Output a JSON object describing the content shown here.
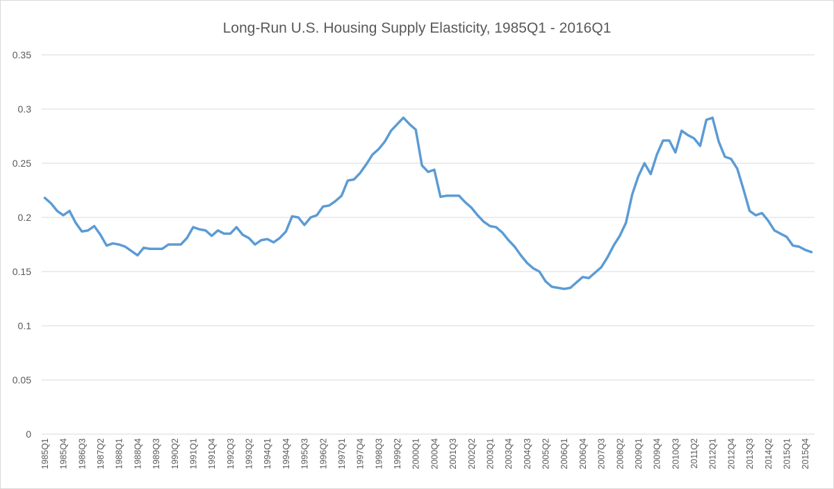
{
  "chart_data": {
    "type": "line",
    "title": "Long-Run U.S. Housing Supply Elasticity, 1985Q1 - 2016Q1",
    "xlabel": "",
    "ylabel": "",
    "ylim": [
      0,
      0.35
    ],
    "yticks": [
      "0",
      "0.05",
      "0.1",
      "0.15",
      "0.2",
      "0.25",
      "0.3",
      "0.35"
    ],
    "grid": true,
    "legend": "none",
    "series_color": "#5b9bd5",
    "xtick_labels": [
      "1985Q1",
      "1985Q4",
      "1986Q3",
      "1987Q2",
      "1988Q1",
      "1988Q4",
      "1989Q3",
      "1990Q2",
      "1991Q1",
      "1991Q4",
      "1992Q3",
      "1993Q2",
      "1994Q1",
      "1994Q4",
      "1995Q3",
      "1996Q2",
      "1997Q1",
      "1997Q4",
      "1998Q3",
      "1999Q2",
      "2000Q1",
      "2000Q4",
      "2001Q3",
      "2002Q2",
      "2003Q1",
      "2003Q4",
      "2004Q3",
      "2005Q2",
      "2006Q1",
      "2006Q4",
      "2007Q3",
      "2008Q2",
      "2009Q1",
      "2009Q4",
      "2010Q3",
      "2011Q2",
      "2012Q1",
      "2012Q4",
      "2013Q3",
      "2014Q2",
      "2015Q1",
      "2015Q4"
    ],
    "series": [
      {
        "name": "Elasticity",
        "values": [
          0.218,
          0.213,
          0.206,
          0.202,
          0.206,
          0.195,
          0.187,
          0.188,
          0.192,
          0.184,
          0.174,
          0.176,
          0.175,
          0.173,
          0.169,
          0.165,
          0.172,
          0.171,
          0.171,
          0.171,
          0.175,
          0.175,
          0.175,
          0.181,
          0.191,
          0.189,
          0.188,
          0.183,
          0.188,
          0.185,
          0.185,
          0.191,
          0.184,
          0.181,
          0.175,
          0.179,
          0.18,
          0.177,
          0.181,
          0.187,
          0.201,
          0.2,
          0.193,
          0.2,
          0.202,
          0.21,
          0.211,
          0.215,
          0.22,
          0.234,
          0.235,
          0.241,
          0.249,
          0.258,
          0.263,
          0.27,
          0.28,
          0.286,
          0.292,
          0.286,
          0.281,
          0.248,
          0.242,
          0.244,
          0.219,
          0.22,
          0.22,
          0.22,
          0.214,
          0.209,
          0.202,
          0.196,
          0.192,
          0.191,
          0.186,
          0.179,
          0.173,
          0.165,
          0.158,
          0.153,
          0.15,
          0.141,
          0.136,
          0.135,
          0.134,
          0.135,
          0.14,
          0.145,
          0.144,
          0.149,
          0.154,
          0.163,
          0.174,
          0.183,
          0.195,
          0.221,
          0.238,
          0.25,
          0.24,
          0.258,
          0.271,
          0.271,
          0.26,
          0.28,
          0.276,
          0.273,
          0.266,
          0.29,
          0.292,
          0.27,
          0.256,
          0.254,
          0.245,
          0.226,
          0.206,
          0.202,
          0.204,
          0.197,
          0.188,
          0.185,
          0.182,
          0.174,
          0.173,
          0.17,
          0.168
        ]
      }
    ]
  }
}
